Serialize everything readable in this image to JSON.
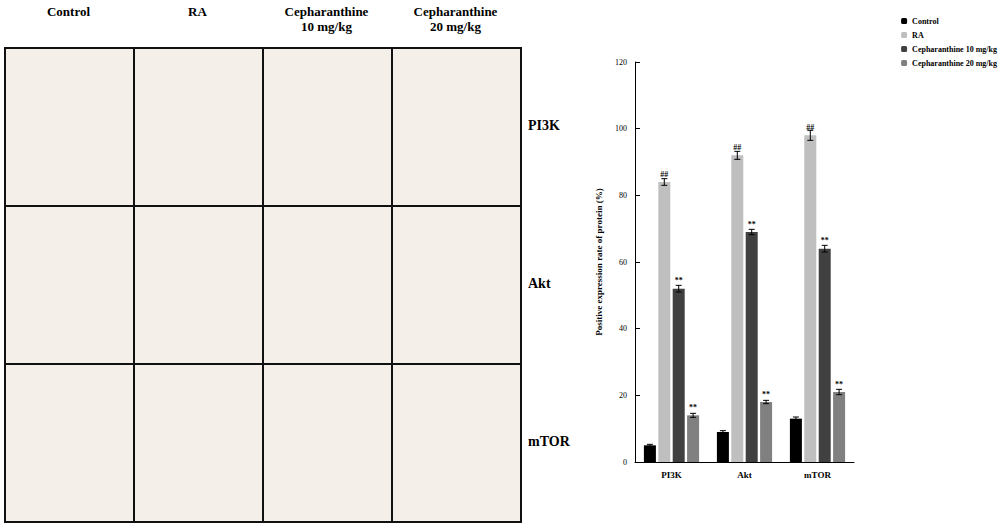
{
  "chart_data": {
    "type": "bar",
    "y_label": "Positive expression rate of protein (%)",
    "categories": [
      "PI3K",
      "Akt",
      "mTOR"
    ],
    "series": [
      {
        "name": "Control",
        "color": "#000000",
        "values": [
          5,
          9,
          13
        ],
        "errors": [
          0.3,
          0.4,
          0.5
        ],
        "marks": [
          null,
          null,
          null
        ]
      },
      {
        "name": "RA",
        "color": "#bfbfbf",
        "values": [
          84,
          92,
          98
        ],
        "errors": [
          1,
          1.2,
          1.5
        ],
        "marks": [
          "##",
          "##",
          "##"
        ]
      },
      {
        "name": "Cepharanthine 10 mg/kg",
        "color": "#404040",
        "values": [
          52,
          69,
          64
        ],
        "errors": [
          1,
          0.8,
          1
        ],
        "marks": [
          "**",
          "**",
          "**"
        ]
      },
      {
        "name": "Cepharanthine 20 mg/kg",
        "color": "#808080",
        "values": [
          14,
          18,
          21
        ],
        "errors": [
          0.6,
          0.5,
          0.8
        ],
        "marks": [
          "**",
          "**",
          "**"
        ]
      }
    ],
    "ylim": [
      0,
      120
    ],
    "yticks": [
      0,
      20,
      40,
      60,
      80,
      100,
      120
    ],
    "grid": false,
    "legend": "top-right"
  },
  "image_panels": {
    "columns": [
      "Control",
      "RA",
      "Cepharanthine\n10 mg/kg",
      "Cepharanthine\n20 mg/kg"
    ],
    "rows": [
      "PI3K",
      "Akt",
      "mTOR"
    ]
  }
}
